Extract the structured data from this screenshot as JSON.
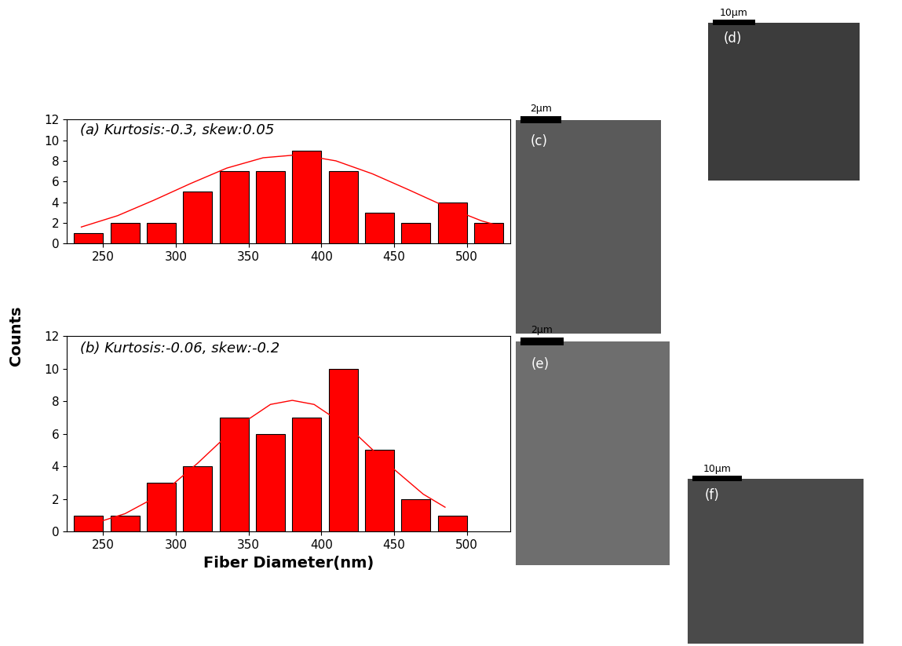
{
  "chart_data": [
    {
      "type": "histogram",
      "title": "(a) Kurtosis:-0.3, skew:0.05",
      "bins": [
        227.5,
        252.5,
        277.5,
        302.5,
        327.5,
        352.5,
        377.5,
        402.5,
        427.5,
        452.5,
        477.5,
        502.5,
        527.5
      ],
      "counts": [
        1,
        2,
        2,
        5,
        7,
        7,
        9,
        7,
        3,
        2,
        4,
        2
      ],
      "color": "#ff0000",
      "fit": {
        "x": [
          235,
          260,
          285,
          310,
          335,
          360,
          385,
          410,
          435,
          460,
          485,
          510,
          520
        ],
        "y": [
          1.6,
          2.7,
          4.2,
          5.8,
          7.3,
          8.3,
          8.6,
          8.0,
          6.75,
          5.2,
          3.6,
          2.2,
          1.8
        ],
        "color": "#ff0000"
      },
      "xlim": [
        225,
        530
      ],
      "xticks": [
        250,
        300,
        350,
        400,
        450,
        500
      ],
      "ylim": [
        0,
        12
      ],
      "yticks": [
        0,
        2,
        4,
        6,
        8,
        10,
        12
      ]
    },
    {
      "type": "histogram",
      "title": "(b) Kurtosis:-0.06, skew:-0.2",
      "bins": [
        227.5,
        252.5,
        277.5,
        302.5,
        327.5,
        352.5,
        377.5,
        402.5,
        427.5,
        452.5,
        477.5,
        502.5
      ],
      "counts": [
        1,
        1,
        3,
        4,
        7,
        6,
        7,
        10,
        5,
        2,
        1
      ],
      "color": "#ff0000",
      "fit": {
        "x": [
          240,
          265,
          290,
          315,
          340,
          365,
          380,
          395,
          420,
          445,
          470,
          485
        ],
        "y": [
          0.4,
          1.1,
          2.3,
          4.2,
          6.3,
          7.8,
          8.05,
          7.8,
          6.3,
          4.2,
          2.3,
          1.5
        ],
        "color": "#ff0000"
      },
      "xlim": [
        225,
        530
      ],
      "xticks": [
        250,
        300,
        350,
        400,
        450,
        500
      ],
      "ylim": [
        0,
        12
      ],
      "yticks": [
        0,
        2,
        4,
        6,
        8,
        10,
        12
      ],
      "x_label": "Fiber Diameter(nm)"
    }
  ],
  "y_label": "Counts",
  "images": [
    {
      "label": "(c)",
      "scale_bar": "2µm"
    },
    {
      "label": "(d)",
      "scale_bar": "10µm"
    },
    {
      "label": "(e)",
      "scale_bar": "2µm"
    },
    {
      "label": "(f)",
      "scale_bar": "10µm"
    }
  ]
}
